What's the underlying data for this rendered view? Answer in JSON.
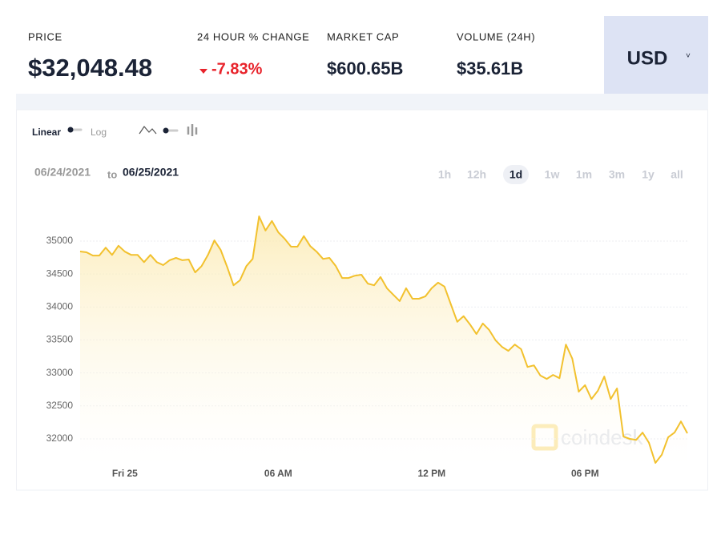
{
  "header": {
    "stats": [
      {
        "label": "PRICE",
        "value": "$32,048.48"
      },
      {
        "label": "24 HOUR % CHANGE",
        "value": "-7.83%"
      },
      {
        "label": "MARKET CAP",
        "value": "$600.65B"
      },
      {
        "label": "VOLUME (24H)",
        "value": "$35.61B"
      }
    ],
    "currency": "USD"
  },
  "controls": {
    "linear": "Linear",
    "log": "Log",
    "date_from": "06/24/2021",
    "to": "to",
    "date_to": "06/25/2021",
    "ranges": [
      "1h",
      "12h",
      "1d",
      "1w",
      "1m",
      "3m",
      "1y",
      "all"
    ],
    "selected_range": "1d",
    "watermark": "coindesk"
  },
  "chart_data": {
    "type": "line",
    "color": "#f2c12e",
    "grid": true,
    "log_scale": false,
    "x": [
      -1.75,
      -1.5,
      -1.25,
      -1,
      -0.75,
      -0.5,
      -0.25,
      0,
      0.25,
      0.5,
      0.75,
      1,
      1.25,
      1.5,
      1.75,
      2,
      2.25,
      2.5,
      2.75,
      3,
      3.25,
      3.5,
      3.75,
      4,
      4.25,
      4.5,
      4.75,
      5,
      5.25,
      5.5,
      5.75,
      6,
      6.25,
      6.5,
      6.75,
      7,
      7.25,
      7.5,
      7.75,
      8,
      8.25,
      8.5,
      8.75,
      9,
      9.25,
      9.5,
      9.75,
      10,
      10.25,
      10.5,
      10.75,
      11,
      11.25,
      11.5,
      11.75,
      12,
      12.25,
      12.5,
      12.75,
      13,
      13.25,
      13.5,
      13.75,
      14,
      14.25,
      14.5,
      14.75,
      15,
      15.25,
      15.5,
      15.75,
      16,
      16.25,
      16.5,
      16.75,
      17,
      17.25,
      17.5,
      17.75,
      18,
      18.25,
      18.5,
      18.75,
      19,
      19.25,
      19.5,
      19.75,
      20,
      20.25,
      20.5,
      20.75,
      21,
      21.25,
      21.5,
      21.75,
      22
    ],
    "values": [
      34842,
      34830,
      34780,
      34780,
      34900,
      34790,
      34930,
      34840,
      34790,
      34790,
      34680,
      34790,
      34680,
      34635,
      34710,
      34745,
      34710,
      34720,
      34525,
      34620,
      34790,
      35010,
      34865,
      34610,
      34330,
      34405,
      34620,
      34730,
      35375,
      35160,
      35305,
      35135,
      35035,
      34915,
      34915,
      35075,
      34925,
      34840,
      34730,
      34745,
      34620,
      34440,
      34440,
      34475,
      34490,
      34355,
      34330,
      34455,
      34285,
      34185,
      34090,
      34285,
      34125,
      34125,
      34160,
      34285,
      34370,
      34310,
      34040,
      33775,
      33860,
      33735,
      33590,
      33750,
      33650,
      33495,
      33395,
      33335,
      33430,
      33360,
      33090,
      33115,
      32960,
      32910,
      32970,
      32920,
      33430,
      33215,
      32715,
      32815,
      32605,
      32730,
      32945,
      32605,
      32765,
      32035,
      32000,
      31985,
      32095,
      31940,
      31635,
      31760,
      32025,
      32095,
      32265,
      32085
    ],
    "xlim": [
      -1.75,
      22
    ],
    "xticks": [
      {
        "value": 0,
        "label": "Fri 25"
      },
      {
        "value": 6,
        "label": "06 AM"
      },
      {
        "value": 12,
        "label": "12 PM"
      },
      {
        "value": 18,
        "label": "06 PM"
      }
    ],
    "ylim": [
      31600,
      35600
    ],
    "yticks": [
      32000,
      32500,
      33000,
      33500,
      34000,
      34500,
      35000
    ]
  }
}
